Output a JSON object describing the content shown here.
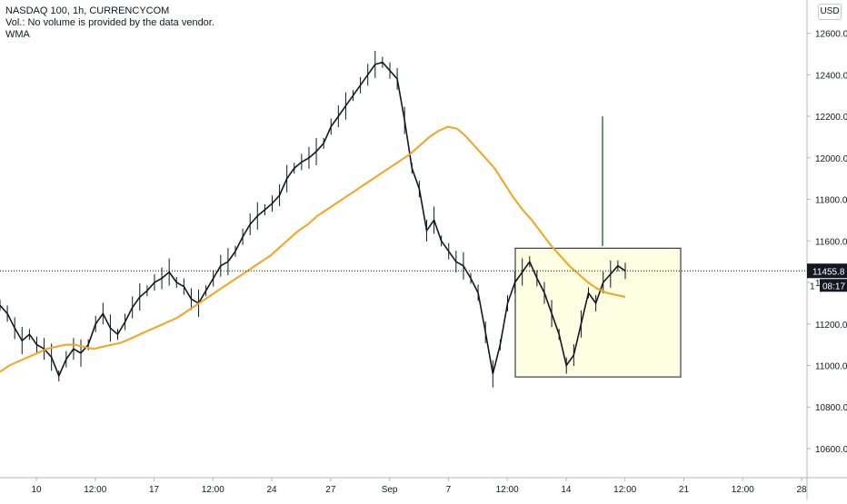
{
  "header": {
    "title": "NASDAQ 100, 1h, CURRENCYCOM",
    "volume_note": "Vol.: No volume is provided by the data vendor.",
    "indicator": "WMA"
  },
  "currency_button": "USD",
  "price_label": {
    "value": "11455.8",
    "countdown": "08:17",
    "partial": "1"
  },
  "colors": {
    "candle": "#131722",
    "wma": "#f7a21b",
    "box_fill": "#fdfee2",
    "box_stroke": "#131722",
    "target_line": "#2e7d32",
    "price_tag": "#131722"
  },
  "chart_data": {
    "type": "line",
    "title": "NASDAQ 100, 1h, CURRENCYCOM",
    "ylim": [
      10460,
      12760
    ],
    "y_ticks": [
      10600,
      10800,
      11000,
      11200,
      11400,
      11600,
      11800,
      12000,
      12200,
      12400,
      12600
    ],
    "y_tick_labels": [
      "10600.0",
      "10800.0",
      "11000.0",
      "11200.0",
      "11400.0",
      "11600.0",
      "11800.0",
      "12000.0",
      "12200.0",
      "12400.0",
      "12600.0"
    ],
    "x_tick_labels": [
      "10",
      "12:00",
      "17",
      "12:00",
      "24",
      "27",
      "Sep",
      "7",
      "12:00",
      "14",
      "12:00",
      "21",
      "12:00",
      "28"
    ],
    "grid": false,
    "last_price": 11455.8,
    "series": [
      {
        "name": "Price",
        "values": [
          11290,
          11250,
          11180,
          11120,
          11150,
          11100,
          11080,
          11040,
          10950,
          11030,
          11080,
          11060,
          11100,
          11200,
          11250,
          11180,
          11150,
          11210,
          11280,
          11330,
          11360,
          11400,
          11420,
          11450,
          11400,
          11380,
          11320,
          11300,
          11360,
          11420,
          11480,
          11500,
          11550,
          11620,
          11680,
          11720,
          11750,
          11780,
          11820,
          11900,
          11950,
          11980,
          12000,
          12030,
          12070,
          12150,
          12200,
          12250,
          12300,
          12350,
          12400,
          12450,
          12460,
          12420,
          12380,
          12180,
          11950,
          11850,
          11650,
          11700,
          11600,
          11550,
          11500,
          11480,
          11420,
          11350,
          11160,
          10960,
          11100,
          11300,
          11400,
          11450,
          11500,
          11420,
          11350,
          11250,
          11150,
          11000,
          11050,
          11200,
          11350,
          11300,
          11400,
          11440,
          11480,
          11455.8
        ]
      },
      {
        "name": "WMA",
        "values": [
          10970,
          11000,
          11020,
          11040,
          11060,
          11080,
          11090,
          11100,
          11100,
          11090,
          11080,
          11090,
          11100,
          11110,
          11130,
          11150,
          11170,
          11190,
          11210,
          11230,
          11260,
          11290,
          11320,
          11350,
          11380,
          11410,
          11440,
          11470,
          11500,
          11530,
          11570,
          11610,
          11650,
          11680,
          11720,
          11750,
          11780,
          11810,
          11840,
          11870,
          11900,
          11930,
          11960,
          11990,
          12020,
          12060,
          12100,
          12130,
          12150,
          12140,
          12100,
          12050,
          12000,
          11950,
          11880,
          11810,
          11750,
          11700,
          11640,
          11580,
          11530,
          11480,
          11440,
          11400,
          11370,
          11350,
          11340,
          11330
        ]
      }
    ],
    "annotations": {
      "range_box": {
        "high": 11565,
        "low": 10945
      },
      "projection_line": {
        "from": 11575,
        "to": 12200
      }
    }
  }
}
